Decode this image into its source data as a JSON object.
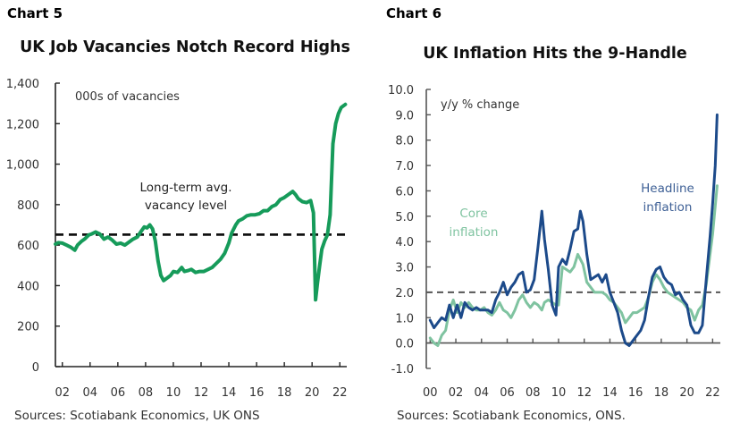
{
  "chart_data": [
    {
      "id": "chart5",
      "label": "Chart 5",
      "type": "line",
      "title": "UK Job Vacancies Notch Record Highs",
      "ylabel": "000s of vacancies",
      "xlabel": "",
      "ylim": [
        0,
        1400
      ],
      "yticks": [
        0,
        200,
        400,
        600,
        800,
        1000,
        1200,
        1400
      ],
      "ytick_labels": [
        "0",
        "200",
        "400",
        "600",
        "800",
        "1,000",
        "1,200",
        "1,400"
      ],
      "xlim": [
        2001.5,
        2022.5
      ],
      "xticks": [
        2002,
        2004,
        2006,
        2008,
        2010,
        2012,
        2014,
        2016,
        2018,
        2020,
        2022
      ],
      "xtick_labels": [
        "02",
        "04",
        "06",
        "08",
        "10",
        "12",
        "14",
        "16",
        "18",
        "20",
        "22"
      ],
      "grid": false,
      "reference_line": {
        "value": 652,
        "style": "dashed",
        "color": "#111111",
        "label": "Long-term avg. vacancy level",
        "label_lines": [
          "Long-term avg.",
          "vacancy level"
        ]
      },
      "series": [
        {
          "name": "UK job vacancies",
          "color": "#169b5a",
          "x": [
            2001.5,
            2001.7,
            2002.0,
            2002.3,
            2002.6,
            2002.9,
            2003.1,
            2003.4,
            2003.6,
            2003.9,
            2004.1,
            2004.4,
            2004.7,
            2005.0,
            2005.3,
            2005.6,
            2005.9,
            2006.2,
            2006.5,
            2006.8,
            2007.1,
            2007.4,
            2007.7,
            2007.9,
            2008.1,
            2008.3,
            2008.5,
            2008.7,
            2008.9,
            2009.1,
            2009.3,
            2009.5,
            2009.8,
            2010.0,
            2010.3,
            2010.6,
            2010.8,
            2011.1,
            2011.3,
            2011.6,
            2011.9,
            2012.2,
            2012.5,
            2012.8,
            2013.1,
            2013.4,
            2013.7,
            2014.0,
            2014.2,
            2014.5,
            2014.7,
            2015.0,
            2015.3,
            2015.6,
            2015.9,
            2016.2,
            2016.5,
            2016.8,
            2017.1,
            2017.4,
            2017.7,
            2018.0,
            2018.3,
            2018.6,
            2018.8,
            2019.0,
            2019.3,
            2019.6,
            2019.9,
            2020.1,
            2020.25,
            2020.4,
            2020.55,
            2020.7,
            2020.9,
            2021.1,
            2021.3,
            2021.5,
            2021.7,
            2021.9,
            2022.1,
            2022.4
          ],
          "values": [
            605,
            612,
            610,
            600,
            590,
            575,
            600,
            620,
            630,
            650,
            655,
            665,
            655,
            630,
            640,
            625,
            605,
            610,
            600,
            615,
            630,
            640,
            670,
            690,
            685,
            700,
            680,
            620,
            520,
            450,
            425,
            435,
            450,
            470,
            465,
            490,
            470,
            475,
            480,
            465,
            470,
            470,
            480,
            490,
            510,
            530,
            560,
            610,
            660,
            700,
            720,
            730,
            745,
            750,
            750,
            755,
            770,
            770,
            790,
            800,
            825,
            835,
            850,
            865,
            850,
            830,
            815,
            810,
            820,
            760,
            330,
            420,
            500,
            580,
            620,
            650,
            750,
            1100,
            1200,
            1250,
            1280,
            1295
          ]
        }
      ],
      "annotations": [
        "000s of vacancies",
        "Long-term avg. vacancy level"
      ],
      "source": "Sources: Scotiabank Economics, UK ONS"
    },
    {
      "id": "chart6",
      "label": "Chart 6",
      "type": "line",
      "title": "UK Inflation Hits the 9-Handle",
      "ylabel": "y/y % change",
      "xlabel": "",
      "ylim": [
        -1.0,
        10.0
      ],
      "yticks": [
        -1,
        0,
        1,
        2,
        3,
        4,
        5,
        6,
        7,
        8,
        9,
        10
      ],
      "ytick_labels": [
        "-1.0",
        "0.0",
        "1.0",
        "2.0",
        "3.0",
        "4.0",
        "5.0",
        "6.0",
        "7.0",
        "8.0",
        "9.0",
        "10.0"
      ],
      "xlim": [
        2000,
        2022.4
      ],
      "xticks": [
        2000,
        2002,
        2004,
        2006,
        2008,
        2010,
        2012,
        2014,
        2016,
        2018,
        2020,
        2022
      ],
      "xtick_labels": [
        "00",
        "02",
        "04",
        "06",
        "08",
        "10",
        "12",
        "14",
        "16",
        "18",
        "20",
        "22"
      ],
      "grid": false,
      "reference_line": {
        "value": 2.0,
        "style": "dashed",
        "color": "#555555",
        "label": ""
      },
      "series": [
        {
          "name": "Headline inflation",
          "label_lines": [
            "Headline",
            "inflation"
          ],
          "color": "#1c4a8a",
          "x": [
            2000.0,
            2000.3,
            2000.6,
            2000.9,
            2001.2,
            2001.5,
            2001.8,
            2002.1,
            2002.4,
            2002.7,
            2003.0,
            2003.3,
            2003.6,
            2003.9,
            2004.2,
            2004.5,
            2004.8,
            2005.1,
            2005.4,
            2005.7,
            2006.0,
            2006.3,
            2006.6,
            2006.9,
            2007.2,
            2007.5,
            2007.8,
            2008.1,
            2008.4,
            2008.7,
            2008.9,
            2009.2,
            2009.5,
            2009.8,
            2010.0,
            2010.3,
            2010.6,
            2010.9,
            2011.2,
            2011.5,
            2011.7,
            2011.9,
            2012.2,
            2012.5,
            2012.8,
            2013.1,
            2013.4,
            2013.7,
            2014.0,
            2014.3,
            2014.6,
            2014.9,
            2015.2,
            2015.5,
            2015.8,
            2016.1,
            2016.4,
            2016.7,
            2017.0,
            2017.3,
            2017.6,
            2017.9,
            2018.2,
            2018.5,
            2018.8,
            2019.1,
            2019.4,
            2019.7,
            2020.0,
            2020.3,
            2020.6,
            2020.9,
            2021.2,
            2021.5,
            2021.8,
            2022.0,
            2022.2,
            2022.35
          ],
          "values": [
            0.9,
            0.6,
            0.8,
            1.0,
            0.9,
            1.5,
            1.0,
            1.5,
            1.0,
            1.6,
            1.4,
            1.3,
            1.4,
            1.3,
            1.3,
            1.3,
            1.2,
            1.7,
            2.0,
            2.4,
            1.9,
            2.2,
            2.4,
            2.7,
            2.8,
            2.0,
            2.1,
            2.5,
            3.8,
            5.2,
            4.1,
            2.9,
            1.5,
            1.1,
            3.0,
            3.3,
            3.1,
            3.7,
            4.4,
            4.5,
            5.2,
            4.8,
            3.5,
            2.5,
            2.6,
            2.7,
            2.4,
            2.7,
            2.0,
            1.6,
            1.2,
            0.5,
            0.0,
            -0.1,
            0.1,
            0.3,
            0.5,
            0.9,
            1.8,
            2.6,
            2.9,
            3.0,
            2.6,
            2.4,
            2.3,
            1.9,
            2.0,
            1.7,
            1.5,
            0.7,
            0.4,
            0.4,
            0.7,
            2.5,
            4.2,
            5.5,
            7.0,
            9.0
          ]
        },
        {
          "name": "Core inflation",
          "label_lines": [
            "Core",
            "inflation"
          ],
          "color": "#7fc3a0",
          "x": [
            2000.0,
            2000.3,
            2000.6,
            2000.9,
            2001.2,
            2001.5,
            2001.8,
            2002.1,
            2002.4,
            2002.7,
            2003.0,
            2003.3,
            2003.6,
            2003.9,
            2004.2,
            2004.5,
            2004.8,
            2005.1,
            2005.4,
            2005.7,
            2006.0,
            2006.3,
            2006.6,
            2006.9,
            2007.2,
            2007.5,
            2007.8,
            2008.1,
            2008.4,
            2008.7,
            2008.9,
            2009.2,
            2009.5,
            2009.8,
            2010.0,
            2010.3,
            2010.6,
            2010.9,
            2011.2,
            2011.5,
            2011.7,
            2011.9,
            2012.2,
            2012.5,
            2012.8,
            2013.1,
            2013.4,
            2013.7,
            2014.0,
            2014.3,
            2014.6,
            2014.9,
            2015.2,
            2015.5,
            2015.8,
            2016.1,
            2016.4,
            2016.7,
            2017.0,
            2017.3,
            2017.6,
            2017.9,
            2018.2,
            2018.5,
            2018.8,
            2019.1,
            2019.4,
            2019.7,
            2020.0,
            2020.3,
            2020.6,
            2020.9,
            2021.2,
            2021.5,
            2021.8,
            2022.0,
            2022.2,
            2022.35
          ],
          "values": [
            0.2,
            0.0,
            -0.1,
            0.3,
            0.5,
            1.3,
            1.7,
            1.2,
            1.6,
            1.4,
            1.6,
            1.4,
            1.3,
            1.3,
            1.4,
            1.2,
            1.1,
            1.3,
            1.6,
            1.3,
            1.2,
            1.0,
            1.3,
            1.7,
            1.9,
            1.6,
            1.4,
            1.6,
            1.5,
            1.3,
            1.6,
            1.7,
            1.6,
            1.5,
            1.5,
            3.0,
            2.9,
            2.8,
            3.0,
            3.5,
            3.3,
            3.1,
            2.4,
            2.2,
            2.0,
            2.0,
            2.0,
            1.9,
            1.7,
            1.6,
            1.4,
            1.2,
            0.8,
            1.0,
            1.2,
            1.2,
            1.3,
            1.4,
            1.8,
            2.4,
            2.7,
            2.5,
            2.2,
            2.0,
            1.9,
            1.8,
            1.7,
            1.6,
            1.4,
            1.3,
            0.9,
            1.3,
            1.5,
            2.3,
            3.5,
            4.3,
            5.4,
            6.2
          ]
        }
      ],
      "annotations": [
        "y/y % change",
        "Core inflation",
        "Headline inflation"
      ],
      "source": "Sources: Scotiabank Economics, ONS."
    }
  ]
}
